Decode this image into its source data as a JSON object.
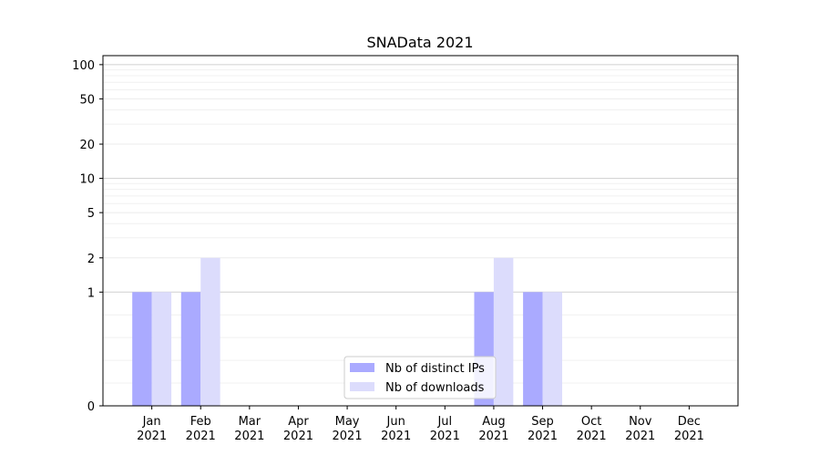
{
  "chart_data": {
    "type": "bar",
    "title": "SNAData 2021",
    "xlabel": "",
    "ylabel": "",
    "y_scale": "symlog",
    "ylim": [
      0,
      120
    ],
    "y_ticks": [
      0,
      1,
      2,
      5,
      10,
      20,
      50,
      100
    ],
    "y_tick_labels": [
      "0",
      "1",
      "2",
      "5",
      "10",
      "20",
      "50",
      "100"
    ],
    "grid": true,
    "legend_position": "bottom-center",
    "categories": [
      {
        "month": "Jan",
        "year": "2021"
      },
      {
        "month": "Feb",
        "year": "2021"
      },
      {
        "month": "Mar",
        "year": "2021"
      },
      {
        "month": "Apr",
        "year": "2021"
      },
      {
        "month": "May",
        "year": "2021"
      },
      {
        "month": "Jun",
        "year": "2021"
      },
      {
        "month": "Jul",
        "year": "2021"
      },
      {
        "month": "Aug",
        "year": "2021"
      },
      {
        "month": "Sep",
        "year": "2021"
      },
      {
        "month": "Oct",
        "year": "2021"
      },
      {
        "month": "Nov",
        "year": "2021"
      },
      {
        "month": "Dec",
        "year": "2021"
      }
    ],
    "series": [
      {
        "name": "Nb of distinct IPs",
        "color": "#aaaaff",
        "values": [
          1,
          1,
          0,
          0,
          0,
          0,
          0,
          1,
          1,
          0,
          0,
          0
        ]
      },
      {
        "name": "Nb of downloads",
        "color": "#dcdcfc",
        "values": [
          1,
          2,
          0,
          0,
          0,
          0,
          0,
          2,
          1,
          0,
          0,
          0
        ]
      }
    ]
  }
}
